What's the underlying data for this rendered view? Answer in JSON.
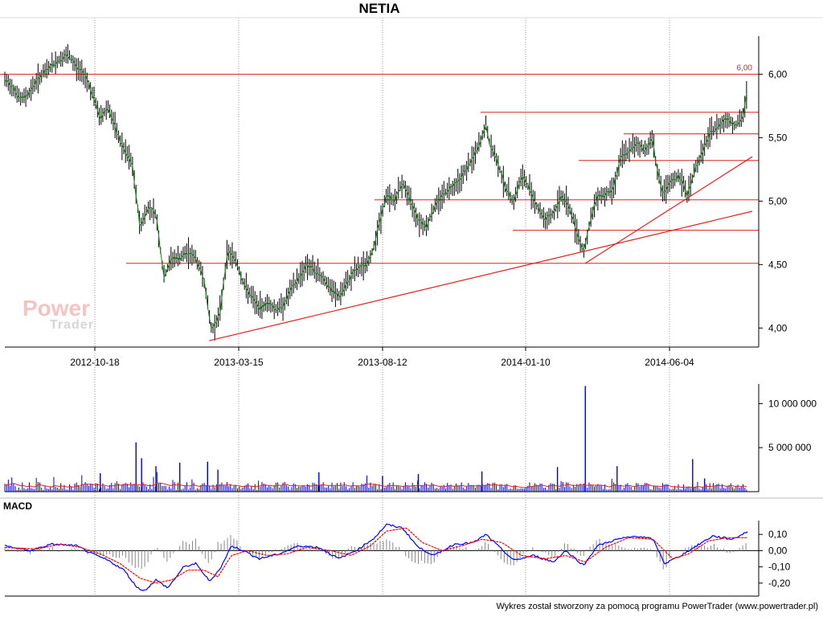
{
  "title": "NETIA",
  "macd_label": "MACD",
  "footer": "Wykres został stworzony za pomocą programu PowerTrader (www.powertrader.pl)",
  "watermark": {
    "top": "Power",
    "bottom": "Trader"
  },
  "colors": {
    "candle": "#000000",
    "close_line": "#1a8a1a",
    "level": "#e02020",
    "volume_bar": "#0000cc",
    "volume_avg": "#e02020",
    "macd": "#0000ff",
    "signal": "#ff0000",
    "histogram": "#888888"
  },
  "chart_data": [
    {
      "type": "line",
      "title": "NETIA",
      "x_tick_labels": [
        "2012-10-18",
        "2013-03-15",
        "2013-08-12",
        "2014-01-10",
        "2014-06-04"
      ],
      "y_tick_labels": [
        "4,00",
        "4,50",
        "5,00",
        "5,50",
        "6,00"
      ],
      "ylim": [
        3.85,
        6.3
      ],
      "grid": true,
      "annotations": [
        "6,00"
      ],
      "price_series": [
        {
          "t": 0,
          "v": 5.95
        },
        {
          "t": 10,
          "v": 5.9
        },
        {
          "t": 20,
          "v": 5.8
        },
        {
          "t": 30,
          "v": 5.85
        },
        {
          "t": 40,
          "v": 5.95
        },
        {
          "t": 55,
          "v": 6.05
        },
        {
          "t": 70,
          "v": 6.12
        },
        {
          "t": 80,
          "v": 6.15
        },
        {
          "t": 90,
          "v": 6.05
        },
        {
          "t": 100,
          "v": 6.0
        },
        {
          "t": 110,
          "v": 5.85
        },
        {
          "t": 120,
          "v": 5.65
        },
        {
          "t": 130,
          "v": 5.75
        },
        {
          "t": 140,
          "v": 5.55
        },
        {
          "t": 150,
          "v": 5.4
        },
        {
          "t": 160,
          "v": 5.3
        },
        {
          "t": 170,
          "v": 4.8
        },
        {
          "t": 180,
          "v": 4.95
        },
        {
          "t": 190,
          "v": 4.9
        },
        {
          "t": 200,
          "v": 4.4
        },
        {
          "t": 210,
          "v": 4.55
        },
        {
          "t": 220,
          "v": 4.55
        },
        {
          "t": 230,
          "v": 4.6
        },
        {
          "t": 240,
          "v": 4.55
        },
        {
          "t": 250,
          "v": 4.4
        },
        {
          "t": 260,
          "v": 3.98
        },
        {
          "t": 270,
          "v": 4.1
        },
        {
          "t": 280,
          "v": 4.6
        },
        {
          "t": 290,
          "v": 4.55
        },
        {
          "t": 300,
          "v": 4.35
        },
        {
          "t": 310,
          "v": 4.25
        },
        {
          "t": 320,
          "v": 4.15
        },
        {
          "t": 330,
          "v": 4.2
        },
        {
          "t": 340,
          "v": 4.15
        },
        {
          "t": 350,
          "v": 4.18
        },
        {
          "t": 360,
          "v": 4.3
        },
        {
          "t": 370,
          "v": 4.4
        },
        {
          "t": 380,
          "v": 4.5
        },
        {
          "t": 390,
          "v": 4.45
        },
        {
          "t": 400,
          "v": 4.4
        },
        {
          "t": 410,
          "v": 4.3
        },
        {
          "t": 420,
          "v": 4.25
        },
        {
          "t": 430,
          "v": 4.35
        },
        {
          "t": 440,
          "v": 4.45
        },
        {
          "t": 450,
          "v": 4.48
        },
        {
          "t": 460,
          "v": 4.55
        },
        {
          "t": 470,
          "v": 4.8
        },
        {
          "t": 480,
          "v": 5.05
        },
        {
          "t": 490,
          "v": 5.0
        },
        {
          "t": 500,
          "v": 5.15
        },
        {
          "t": 510,
          "v": 5.0
        },
        {
          "t": 520,
          "v": 4.85
        },
        {
          "t": 530,
          "v": 4.8
        },
        {
          "t": 540,
          "v": 4.95
        },
        {
          "t": 550,
          "v": 5.05
        },
        {
          "t": 560,
          "v": 5.1
        },
        {
          "t": 570,
          "v": 5.15
        },
        {
          "t": 580,
          "v": 5.25
        },
        {
          "t": 590,
          "v": 5.35
        },
        {
          "t": 600,
          "v": 5.5
        },
        {
          "t": 605,
          "v": 5.6
        },
        {
          "t": 610,
          "v": 5.45
        },
        {
          "t": 620,
          "v": 5.3
        },
        {
          "t": 630,
          "v": 5.1
        },
        {
          "t": 640,
          "v": 5.0
        },
        {
          "t": 650,
          "v": 5.2
        },
        {
          "t": 660,
          "v": 5.1
        },
        {
          "t": 670,
          "v": 4.95
        },
        {
          "t": 680,
          "v": 4.85
        },
        {
          "t": 690,
          "v": 4.9
        },
        {
          "t": 700,
          "v": 5.05
        },
        {
          "t": 710,
          "v": 4.95
        },
        {
          "t": 720,
          "v": 4.75
        },
        {
          "t": 728,
          "v": 4.6
        },
        {
          "t": 735,
          "v": 4.8
        },
        {
          "t": 745,
          "v": 5.05
        },
        {
          "t": 755,
          "v": 5.05
        },
        {
          "t": 765,
          "v": 5.1
        },
        {
          "t": 775,
          "v": 5.35
        },
        {
          "t": 785,
          "v": 5.4
        },
        {
          "t": 795,
          "v": 5.45
        },
        {
          "t": 805,
          "v": 5.4
        },
        {
          "t": 815,
          "v": 5.5
        },
        {
          "t": 820,
          "v": 5.25
        },
        {
          "t": 828,
          "v": 5.05
        },
        {
          "t": 838,
          "v": 5.15
        },
        {
          "t": 848,
          "v": 5.2
        },
        {
          "t": 858,
          "v": 5.05
        },
        {
          "t": 868,
          "v": 5.25
        },
        {
          "t": 878,
          "v": 5.4
        },
        {
          "t": 888,
          "v": 5.55
        },
        {
          "t": 898,
          "v": 5.6
        },
        {
          "t": 908,
          "v": 5.65
        },
        {
          "t": 918,
          "v": 5.6
        },
        {
          "t": 928,
          "v": 5.65
        },
        {
          "t": 935,
          "v": 5.92
        }
      ],
      "horizontal_levels": [
        6.0,
        5.7,
        5.53,
        5.32,
        5.01,
        4.77,
        4.51
      ],
      "trend_lines": [
        {
          "from": [
            257,
            3.9
          ],
          "to": [
            940,
            4.92
          ]
        },
        {
          "from": [
            730,
            4.51
          ],
          "to": [
            940,
            5.35
          ]
        }
      ]
    },
    {
      "type": "bar",
      "title": "",
      "y_tick_labels": [
        "5 000 000",
        "10 000 000"
      ],
      "ylim": [
        0,
        12500000
      ],
      "spikes": [
        {
          "t": 120,
          "v": 2100000
        },
        {
          "t": 165,
          "v": 5600000
        },
        {
          "t": 172,
          "v": 3800000
        },
        {
          "t": 190,
          "v": 2900000
        },
        {
          "t": 220,
          "v": 3300000
        },
        {
          "t": 255,
          "v": 3400000
        },
        {
          "t": 268,
          "v": 2500000
        },
        {
          "t": 395,
          "v": 2200000
        },
        {
          "t": 475,
          "v": 1800000
        },
        {
          "t": 520,
          "v": 2000000
        },
        {
          "t": 600,
          "v": 2300000
        },
        {
          "t": 695,
          "v": 2800000
        },
        {
          "t": 730,
          "v": 12000000
        },
        {
          "t": 770,
          "v": 2900000
        },
        {
          "t": 865,
          "v": 3700000
        },
        {
          "t": 880,
          "v": 1500000
        }
      ]
    },
    {
      "type": "line",
      "title": "MACD",
      "y_tick_labels": [
        "0,10",
        "0,00",
        "-0,10",
        "-0,20"
      ],
      "ylim": [
        -0.28,
        0.2
      ],
      "series": [
        {
          "values_at": [
            {
              "t": 0,
              "v": 0.03
            },
            {
              "t": 30,
              "v": 0.0
            },
            {
              "t": 60,
              "v": 0.04
            },
            {
              "t": 90,
              "v": 0.03
            },
            {
              "t": 110,
              "v": -0.02
            },
            {
              "t": 130,
              "v": -0.06
            },
            {
              "t": 150,
              "v": -0.12
            },
            {
              "t": 165,
              "v": -0.22
            },
            {
              "t": 175,
              "v": -0.25
            },
            {
              "t": 190,
              "v": -0.18
            },
            {
              "t": 205,
              "v": -0.23
            },
            {
              "t": 225,
              "v": -0.1
            },
            {
              "t": 240,
              "v": -0.08
            },
            {
              "t": 258,
              "v": -0.19
            },
            {
              "t": 272,
              "v": -0.1
            },
            {
              "t": 285,
              "v": 0.03
            },
            {
              "t": 300,
              "v": 0.0
            },
            {
              "t": 320,
              "v": -0.05
            },
            {
              "t": 345,
              "v": -0.02
            },
            {
              "t": 370,
              "v": 0.03
            },
            {
              "t": 395,
              "v": 0.02
            },
            {
              "t": 420,
              "v": -0.05
            },
            {
              "t": 445,
              "v": 0.01
            },
            {
              "t": 465,
              "v": 0.08
            },
            {
              "t": 480,
              "v": 0.16
            },
            {
              "t": 500,
              "v": 0.14
            },
            {
              "t": 520,
              "v": 0.02
            },
            {
              "t": 540,
              "v": -0.03
            },
            {
              "t": 565,
              "v": 0.04
            },
            {
              "t": 590,
              "v": 0.05
            },
            {
              "t": 605,
              "v": 0.1
            },
            {
              "t": 620,
              "v": 0.03
            },
            {
              "t": 640,
              "v": -0.06
            },
            {
              "t": 665,
              "v": -0.03
            },
            {
              "t": 690,
              "v": -0.07
            },
            {
              "t": 705,
              "v": 0.0
            },
            {
              "t": 728,
              "v": -0.09
            },
            {
              "t": 745,
              "v": 0.03
            },
            {
              "t": 770,
              "v": 0.07
            },
            {
              "t": 795,
              "v": 0.09
            },
            {
              "t": 815,
              "v": 0.07
            },
            {
              "t": 830,
              "v": -0.08
            },
            {
              "t": 850,
              "v": -0.03
            },
            {
              "t": 870,
              "v": 0.03
            },
            {
              "t": 890,
              "v": 0.09
            },
            {
              "t": 915,
              "v": 0.07
            },
            {
              "t": 935,
              "v": 0.12
            }
          ]
        },
        {
          "values_at": [
            {
              "t": 0,
              "v": 0.02
            },
            {
              "t": 40,
              "v": 0.01
            },
            {
              "t": 70,
              "v": 0.04
            },
            {
              "t": 95,
              "v": 0.02
            },
            {
              "t": 120,
              "v": -0.02
            },
            {
              "t": 145,
              "v": -0.08
            },
            {
              "t": 170,
              "v": -0.17
            },
            {
              "t": 190,
              "v": -0.2
            },
            {
              "t": 210,
              "v": -0.18
            },
            {
              "t": 230,
              "v": -0.12
            },
            {
              "t": 250,
              "v": -0.12
            },
            {
              "t": 268,
              "v": -0.16
            },
            {
              "t": 285,
              "v": -0.03
            },
            {
              "t": 305,
              "v": 0.0
            },
            {
              "t": 330,
              "v": -0.03
            },
            {
              "t": 355,
              "v": -0.02
            },
            {
              "t": 380,
              "v": 0.02
            },
            {
              "t": 410,
              "v": 0.0
            },
            {
              "t": 435,
              "v": -0.03
            },
            {
              "t": 460,
              "v": 0.03
            },
            {
              "t": 480,
              "v": 0.12
            },
            {
              "t": 505,
              "v": 0.14
            },
            {
              "t": 525,
              "v": 0.05
            },
            {
              "t": 550,
              "v": 0.0
            },
            {
              "t": 575,
              "v": 0.03
            },
            {
              "t": 600,
              "v": 0.07
            },
            {
              "t": 625,
              "v": 0.05
            },
            {
              "t": 650,
              "v": -0.03
            },
            {
              "t": 680,
              "v": -0.05
            },
            {
              "t": 705,
              "v": -0.03
            },
            {
              "t": 730,
              "v": -0.07
            },
            {
              "t": 755,
              "v": 0.02
            },
            {
              "t": 785,
              "v": 0.08
            },
            {
              "t": 815,
              "v": 0.07
            },
            {
              "t": 840,
              "v": -0.05
            },
            {
              "t": 860,
              "v": -0.02
            },
            {
              "t": 885,
              "v": 0.06
            },
            {
              "t": 910,
              "v": 0.08
            },
            {
              "t": 935,
              "v": 0.08
            }
          ]
        }
      ]
    }
  ]
}
